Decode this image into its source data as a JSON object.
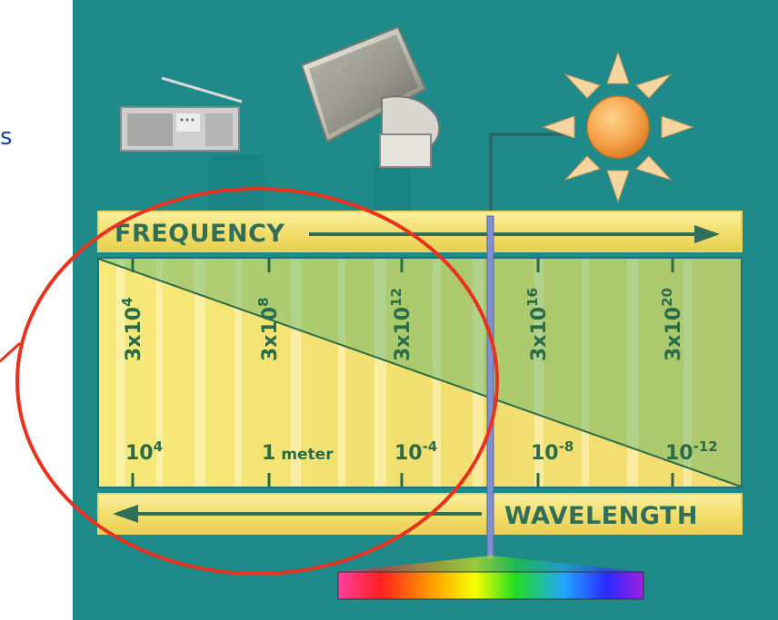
{
  "frequency_label": "FREQUENCY",
  "wavelength_label": "WAVELENGTH",
  "slide_text_fragment": "s",
  "frequency_ticks": [
    {
      "base": "3x10",
      "exp": "4"
    },
    {
      "base": "3x10",
      "exp": "8"
    },
    {
      "base": "3x10",
      "exp": "12"
    },
    {
      "base": "3x10",
      "exp": "16"
    },
    {
      "base": "3x10",
      "exp": "20"
    }
  ],
  "wavelength_ticks": [
    {
      "base": "10",
      "exp": "4",
      "unit": ""
    },
    {
      "base": "1",
      "exp": "",
      "unit": "meter"
    },
    {
      "base": "10",
      "exp": "-4",
      "unit": ""
    },
    {
      "base": "10",
      "exp": "-8",
      "unit": ""
    },
    {
      "base": "10",
      "exp": "-12",
      "unit": ""
    }
  ],
  "icons": [
    "radio-icon",
    "satellite-dish-icon",
    "sun-icon",
    "prism-spectrum-icon"
  ],
  "colors": {
    "background_panel": "#1e8a8a",
    "band_yellow": "#f4e27a",
    "label_green": "#2a6b4a",
    "highlight_circle": "#e8321e",
    "slide_text": "#1f3fb0"
  }
}
